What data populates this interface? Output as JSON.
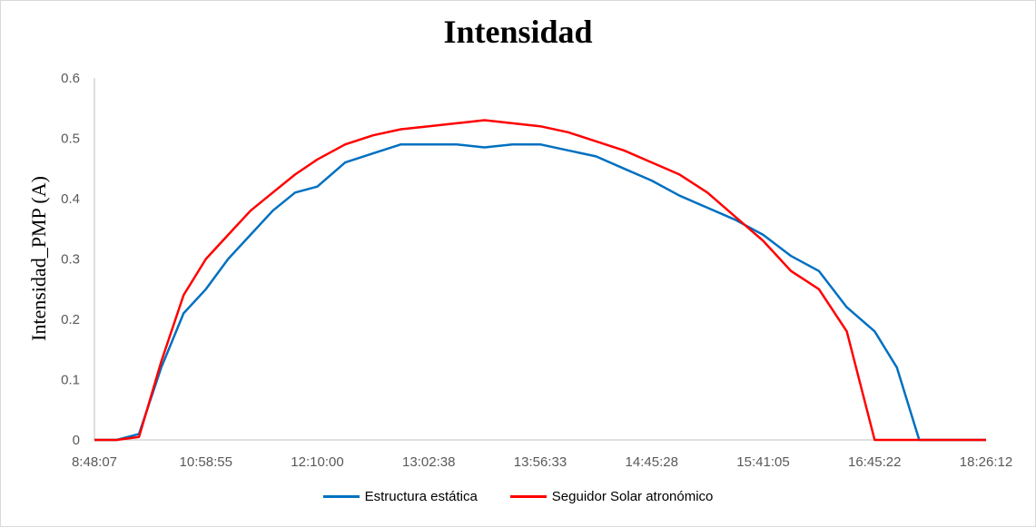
{
  "chart_data": {
    "type": "line",
    "title": "Intensidad",
    "xlabel": "",
    "ylabel": "Intensidad_PMP (A)",
    "ylim": [
      0,
      0.6
    ],
    "yticks": [
      "0",
      "0.1",
      "0.2",
      "0.3",
      "0.4",
      "0.5",
      "0.6"
    ],
    "x_tick_labels": [
      "8:48:07",
      "10:58:55",
      "12:10:00",
      "13:02:38",
      "13:56:33",
      "14:45:28",
      "15:41:05",
      "16:45:22",
      "18:26:12"
    ],
    "grid": false,
    "legend_position": "bottom",
    "x_index": [
      0,
      0.2,
      0.4,
      0.6,
      0.8,
      1.0,
      1.2,
      1.4,
      1.6,
      1.8,
      2.0,
      2.25,
      2.5,
      2.75,
      3.0,
      3.25,
      3.5,
      3.75,
      4.0,
      4.25,
      4.5,
      4.75,
      5.0,
      5.25,
      5.5,
      5.75,
      6.0,
      6.25,
      6.5,
      6.75,
      7.0,
      7.2,
      7.4,
      7.6,
      7.8,
      7.9,
      8.0
    ],
    "series": [
      {
        "name": "Estructura estática",
        "color": "#0070c0",
        "values": [
          0.0,
          0.0,
          0.01,
          0.12,
          0.21,
          0.25,
          0.3,
          0.34,
          0.38,
          0.41,
          0.42,
          0.46,
          0.475,
          0.49,
          0.49,
          0.49,
          0.485,
          0.49,
          0.49,
          0.48,
          0.47,
          0.45,
          0.43,
          0.405,
          0.385,
          0.365,
          0.34,
          0.305,
          0.28,
          0.22,
          0.18,
          0.12,
          0.0,
          0.0,
          0.0,
          0.0,
          0.0
        ]
      },
      {
        "name": "Seguidor Solar atronómico",
        "color": "#ff0000",
        "values": [
          0.0,
          0.0,
          0.005,
          0.13,
          0.24,
          0.3,
          0.34,
          0.38,
          0.41,
          0.44,
          0.465,
          0.49,
          0.505,
          0.515,
          0.52,
          0.525,
          0.53,
          0.525,
          0.52,
          0.51,
          0.495,
          0.48,
          0.46,
          0.44,
          0.41,
          0.37,
          0.33,
          0.28,
          0.25,
          0.18,
          0.0,
          0.0,
          0.0,
          0.0,
          0.0,
          0.0,
          0.0
        ]
      }
    ]
  }
}
